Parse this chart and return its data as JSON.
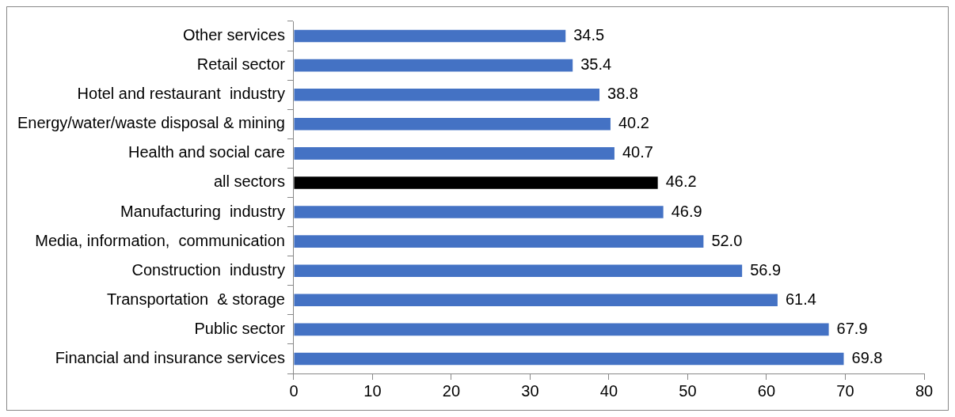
{
  "chart_data": {
    "type": "bar",
    "orientation": "horizontal",
    "categories": [
      "Other services",
      "Retail sector",
      "Hotel and restaurant  industry",
      "Energy/water/waste disposal & mining",
      "Health and social care",
      "all sectors",
      "Manufacturing  industry",
      "Media, information,  communication",
      "Construction  industry",
      "Transportation  & storage",
      "Public sector",
      "Financial and insurance services"
    ],
    "values": [
      34.5,
      35.4,
      38.8,
      40.2,
      40.7,
      46.2,
      46.9,
      52.0,
      56.9,
      61.4,
      67.9,
      69.8
    ],
    "colors": [
      "#4472c4",
      "#4472c4",
      "#4472c4",
      "#4472c4",
      "#4472c4",
      "#000000",
      "#4472c4",
      "#4472c4",
      "#4472c4",
      "#4472c4",
      "#4472c4",
      "#4472c4"
    ],
    "value_labels": [
      "34.5",
      "35.4",
      "38.8",
      "40.2",
      "40.7",
      "46.2",
      "46.9",
      "52.0",
      "56.9",
      "61.4",
      "67.9",
      "69.8"
    ],
    "xlim": [
      0,
      80
    ],
    "xticks": [
      0,
      10,
      20,
      30,
      40,
      50,
      60,
      70,
      80
    ]
  }
}
